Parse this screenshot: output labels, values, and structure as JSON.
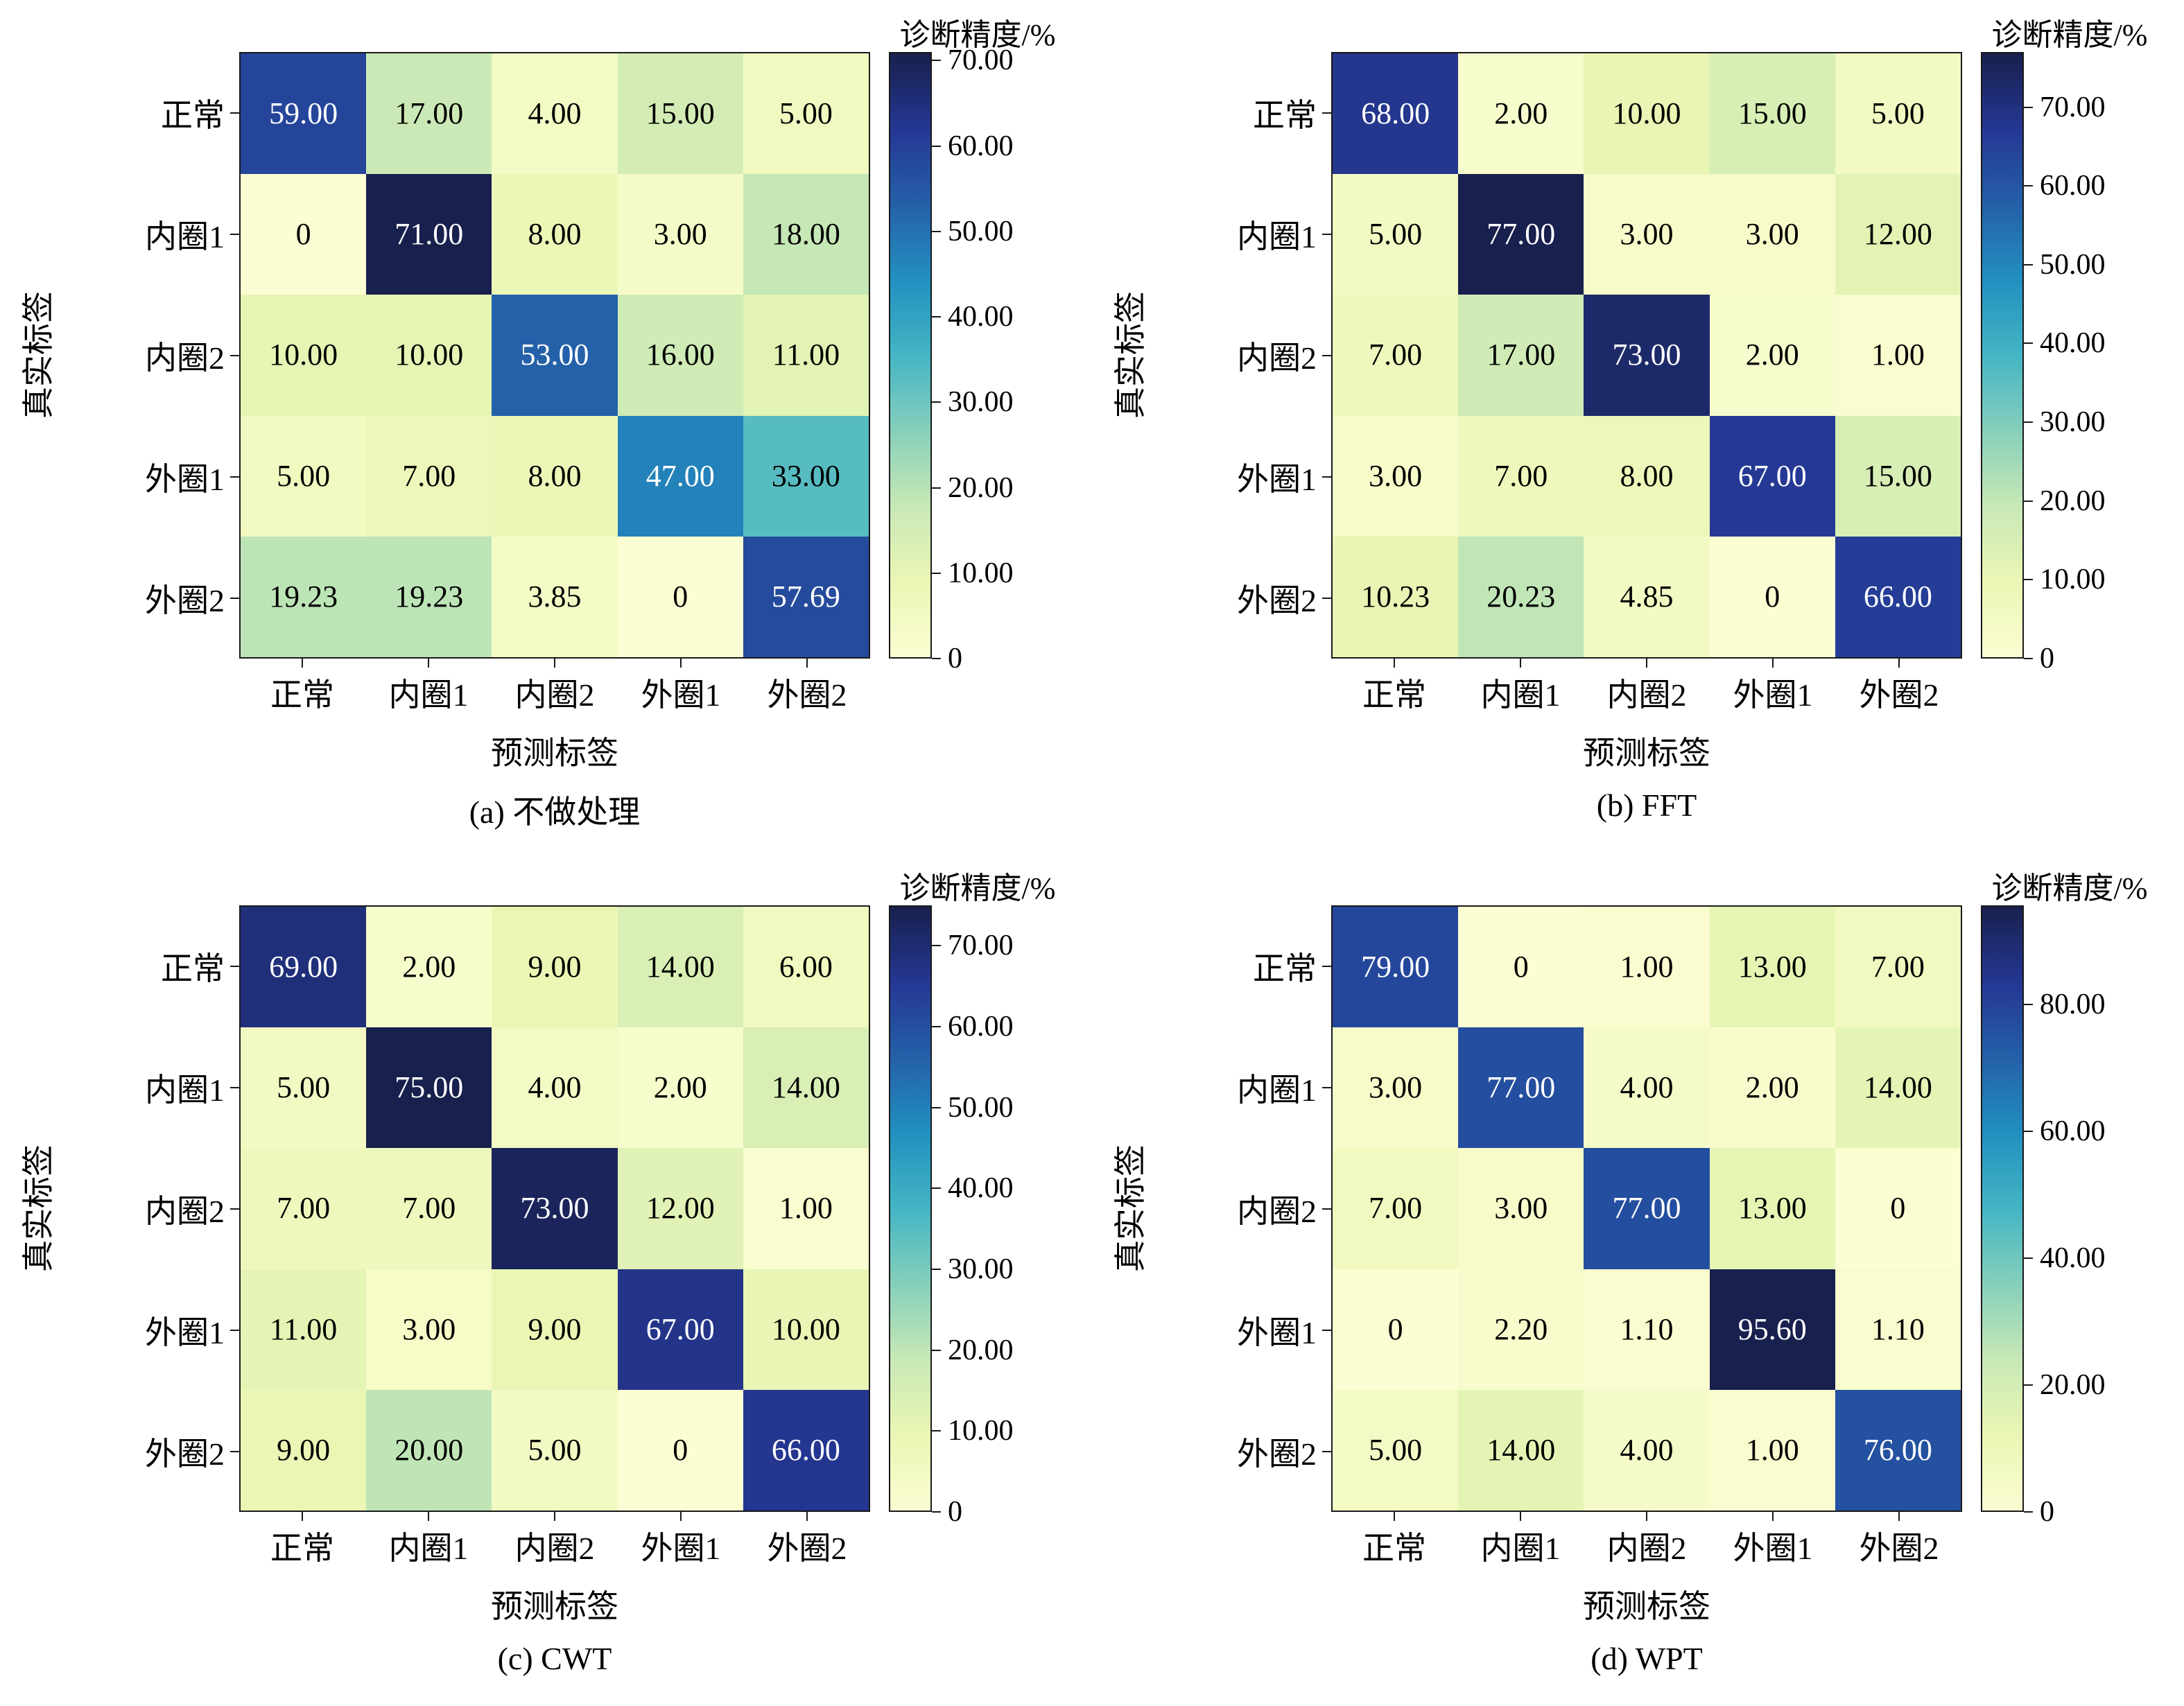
{
  "colorbar_title": "诊断精度/%",
  "axes": {
    "xlabel": "预测标签",
    "ylabel": "真实标签"
  },
  "categories": [
    "正常",
    "内圈1",
    "内圈2",
    "外圈1",
    "外圈2"
  ],
  "colors": {
    "colormap_stops": [
      {
        "t": 0,
        "color": "#fbfdd2"
      },
      {
        "t": 0.125,
        "color": "#eaf6b4"
      },
      {
        "t": 0.25,
        "color": "#c8e8b6"
      },
      {
        "t": 0.375,
        "color": "#86cfbb"
      },
      {
        "t": 0.5,
        "color": "#44b5c4"
      },
      {
        "t": 0.625,
        "color": "#2290c0"
      },
      {
        "t": 0.75,
        "color": "#2460a8"
      },
      {
        "t": 0.875,
        "color": "#253793"
      },
      {
        "t": 1,
        "color": "#18204d"
      }
    ],
    "cell_text_light": "#ffffff",
    "cell_text_dark": "#000000",
    "spine": "#1a1a1a"
  },
  "chart_data": [
    {
      "type": "heatmap",
      "caption": "(a) 不做处理",
      "xlabel": "预测标签",
      "ylabel": "真实标签",
      "row_labels": [
        "正常",
        "内圈1",
        "内圈2",
        "外圈1",
        "外圈2"
      ],
      "col_labels": [
        "正常",
        "内圈1",
        "内圈2",
        "外圈1",
        "外圈2"
      ],
      "vmax": 71,
      "colorbar_ticks": [
        70,
        60,
        50,
        40,
        30,
        20,
        10,
        0
      ],
      "values": [
        [
          59.0,
          17.0,
          4.0,
          15.0,
          5.0
        ],
        [
          0,
          71.0,
          8.0,
          3.0,
          18.0
        ],
        [
          10.0,
          10.0,
          53.0,
          16.0,
          11.0
        ],
        [
          5.0,
          7.0,
          8.0,
          47.0,
          33.0
        ],
        [
          19.23,
          19.23,
          3.85,
          0,
          57.69
        ]
      ]
    },
    {
      "type": "heatmap",
      "caption": "(b) FFT",
      "xlabel": "预测标签",
      "ylabel": "真实标签",
      "row_labels": [
        "正常",
        "内圈1",
        "内圈2",
        "外圈1",
        "外圈2"
      ],
      "col_labels": [
        "正常",
        "内圈1",
        "内圈2",
        "外圈1",
        "外圈2"
      ],
      "vmax": 77,
      "colorbar_ticks": [
        70,
        60,
        50,
        40,
        30,
        20,
        10,
        0
      ],
      "values": [
        [
          68.0,
          2.0,
          10.0,
          15.0,
          5.0
        ],
        [
          5.0,
          77.0,
          3.0,
          3.0,
          12.0
        ],
        [
          7.0,
          17.0,
          73.0,
          2.0,
          1.0
        ],
        [
          3.0,
          7.0,
          8.0,
          67.0,
          15.0
        ],
        [
          10.23,
          20.23,
          4.85,
          0,
          66.0
        ]
      ]
    },
    {
      "type": "heatmap",
      "caption": "(c) CWT",
      "xlabel": "预测标签",
      "ylabel": "真实标签",
      "row_labels": [
        "正常",
        "内圈1",
        "内圈2",
        "外圈1",
        "外圈2"
      ],
      "col_labels": [
        "正常",
        "内圈1",
        "内圈2",
        "外圈1",
        "外圈2"
      ],
      "vmax": 75,
      "colorbar_ticks": [
        70,
        60,
        50,
        40,
        30,
        20,
        10,
        0
      ],
      "values": [
        [
          69.0,
          2.0,
          9.0,
          14.0,
          6.0
        ],
        [
          5.0,
          75.0,
          4.0,
          2.0,
          14.0
        ],
        [
          7.0,
          7.0,
          73.0,
          12.0,
          1.0
        ],
        [
          11.0,
          3.0,
          9.0,
          67.0,
          10.0
        ],
        [
          9.0,
          20.0,
          5.0,
          0,
          66.0
        ]
      ]
    },
    {
      "type": "heatmap",
      "caption": "(d) WPT",
      "xlabel": "预测标签",
      "ylabel": "真实标签",
      "row_labels": [
        "正常",
        "内圈1",
        "内圈2",
        "外圈1",
        "外圈2"
      ],
      "col_labels": [
        "正常",
        "内圈1",
        "内圈2",
        "外圈1",
        "外圈2"
      ],
      "vmax": 95.6,
      "colorbar_ticks": [
        80,
        60,
        40,
        20,
        0
      ],
      "values": [
        [
          79.0,
          0,
          1.0,
          13.0,
          7.0
        ],
        [
          3.0,
          77.0,
          4.0,
          2.0,
          14.0
        ],
        [
          7.0,
          3.0,
          77.0,
          13.0,
          0
        ],
        [
          0,
          2.2,
          1.1,
          95.6,
          1.1
        ],
        [
          5.0,
          14.0,
          4.0,
          1.0,
          76.0
        ]
      ]
    }
  ]
}
